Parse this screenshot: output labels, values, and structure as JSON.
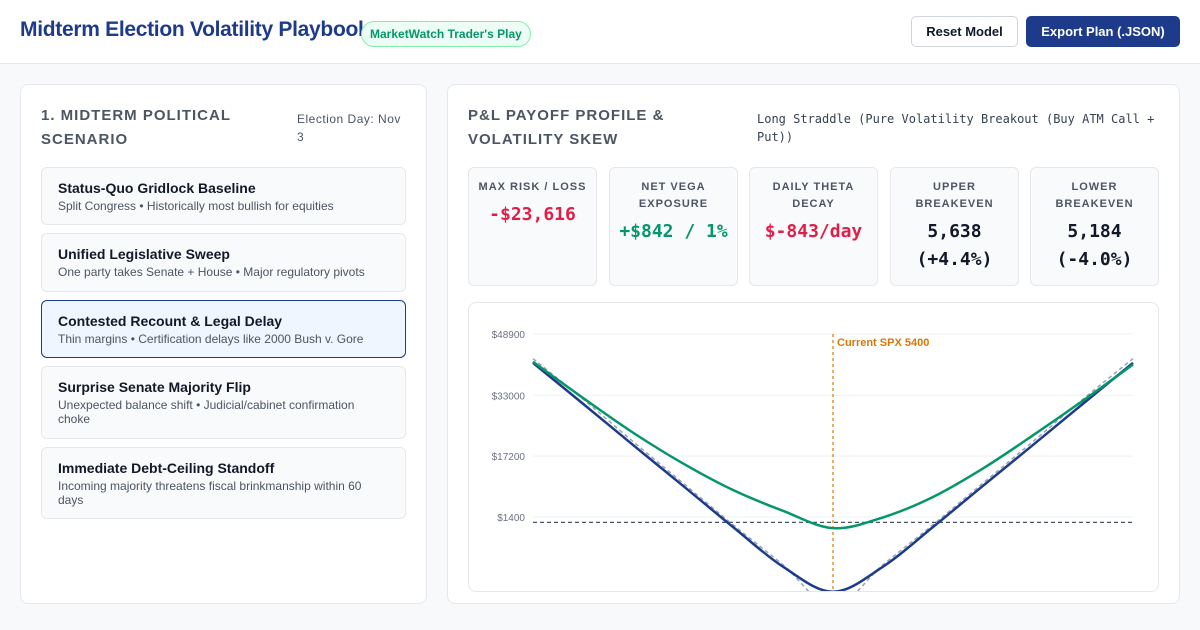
{
  "header": {
    "title": "Midterm Election Volatility Playbook",
    "badge": "MarketWatch Trader's Play",
    "reset_label": "Reset Model",
    "export_label": "Export Plan (.JSON)"
  },
  "scenario_panel": {
    "title": "1. Midterm Political Scenario",
    "election_day": "Election Day: Nov 3",
    "selected_index": 2,
    "items": [
      {
        "title": "Status-Quo Gridlock Baseline",
        "desc": "Split Congress • Historically most bullish for equities"
      },
      {
        "title": "Unified Legislative Sweep",
        "desc": "One party takes Senate + House • Major regulatory pivots"
      },
      {
        "title": "Contested Recount & Legal Delay",
        "desc": "Thin margins • Certification delays like 2000 Bush v. Gore"
      },
      {
        "title": "Surprise Senate Majority Flip",
        "desc": "Unexpected balance shift • Judicial/cabinet confirmation choke"
      },
      {
        "title": "Immediate Debt-Ceiling Standoff",
        "desc": "Incoming majority threatens fiscal brinkmanship within 60 days"
      }
    ]
  },
  "payoff_panel": {
    "title": "P&L Payoff Profile & Volatility Skew",
    "strategy": "Long Straddle (Pure Volatility Breakout (Buy ATM Call + Put))",
    "metrics": [
      {
        "label": "Max Risk / Loss",
        "value": "-$23,616",
        "tone": "neg"
      },
      {
        "label": "Net Vega Exposure",
        "value": "+$842 / 1%",
        "tone": "pos"
      },
      {
        "label": "Daily Theta Decay",
        "value": "$-843/day",
        "tone": "neg"
      },
      {
        "label": "Upper Breakeven",
        "value": "5,638 (+4.4%)",
        "tone": "neutral"
      },
      {
        "label": "Lower Breakeven",
        "value": "5,184 (-4.0%)",
        "tone": "neutral"
      }
    ]
  },
  "chart_data": {
    "type": "line",
    "title": "",
    "xlabel": "",
    "ylabel": "",
    "y_ticks": [
      48900,
      33000,
      17200,
      1400
    ],
    "y_tick_labels": [
      "$48900",
      "$33000",
      "$17200",
      "$1400"
    ],
    "ylim": [
      -12000,
      48900
    ],
    "xlim": [
      4800,
      6000
    ],
    "zero_line": 0,
    "marker": {
      "label": "Current SPX 5400",
      "x": 5400
    },
    "grid": true,
    "series": [
      {
        "style": "solid",
        "color": "#059669",
        "x": [
          4800,
          4900,
          5000,
          5100,
          5200,
          5300,
          5400,
          5500,
          5600,
          5700,
          5800,
          5900,
          6000
        ],
        "values": [
          41700,
          32300,
          23300,
          15300,
          8400,
          3000,
          -1500,
          1300,
          6600,
          14000,
          22600,
          31600,
          41000
        ]
      },
      {
        "style": "solid",
        "color": "#1e3a8a",
        "x": [
          4800,
          4900,
          5000,
          5100,
          5200,
          5300,
          5400,
          5500,
          5600,
          5700,
          5800,
          5900,
          6000
        ],
        "values": [
          41400,
          30800,
          20100,
          9500,
          -1200,
          -11500,
          -18000,
          -11500,
          -1200,
          9500,
          20100,
          30800,
          41400
        ]
      },
      {
        "style": "dashed",
        "color": "#94a3b8",
        "x": [
          4800,
          4900,
          5000,
          5100,
          5200,
          5300,
          5400,
          5500,
          5600,
          5700,
          5800,
          5900,
          6000
        ],
        "values": [
          42500,
          32000,
          21000,
          10200,
          -600,
          -11000,
          -21800,
          -11000,
          -600,
          10200,
          21000,
          32000,
          42500
        ]
      }
    ],
    "colors": {
      "marker": "#d97706",
      "zero_line": "#475569",
      "grid": "#eef0f3",
      "tick_text": "#6b7280"
    }
  },
  "colors": {
    "primary": "#1e3a8a",
    "positive": "#059669",
    "negative": "#e11d48"
  }
}
